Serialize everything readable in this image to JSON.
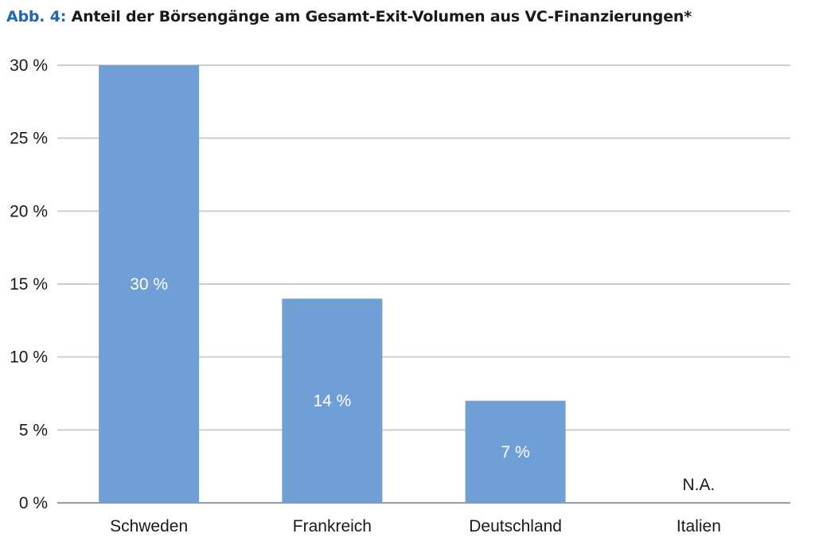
{
  "title_prefix": "Abb. 4:",
  "title_text": "Anteil der Börsengänge am Gesamt-Exit-Volumen aus VC-Finanzierungen*",
  "colors": {
    "bar": "#6f9fd5",
    "grid": "#cfcfcf",
    "axis": "#999999",
    "title_accent": "#1f66b3",
    "label_inside": "#ffffff",
    "label_outside": "#1a1a1a"
  },
  "chart_data": {
    "type": "bar",
    "categories": [
      "Schweden",
      "Frankreich",
      "Deutschland",
      "Italien"
    ],
    "values": [
      30,
      14,
      7,
      null
    ],
    "data_labels": [
      "30 %",
      "14 %",
      "7 %",
      "N.A."
    ],
    "title": "Anteil der Börsengänge am Gesamt-Exit-Volumen aus VC-Finanzierungen*",
    "xlabel": "",
    "ylabel": "",
    "ylim": [
      0,
      30
    ],
    "yticks": [
      0,
      5,
      10,
      15,
      20,
      25,
      30
    ],
    "ytick_labels": [
      "0 %",
      "5 %",
      "10 %",
      "15 %",
      "20 %",
      "25 %",
      "30 %"
    ],
    "grid": true,
    "legend": "none"
  }
}
